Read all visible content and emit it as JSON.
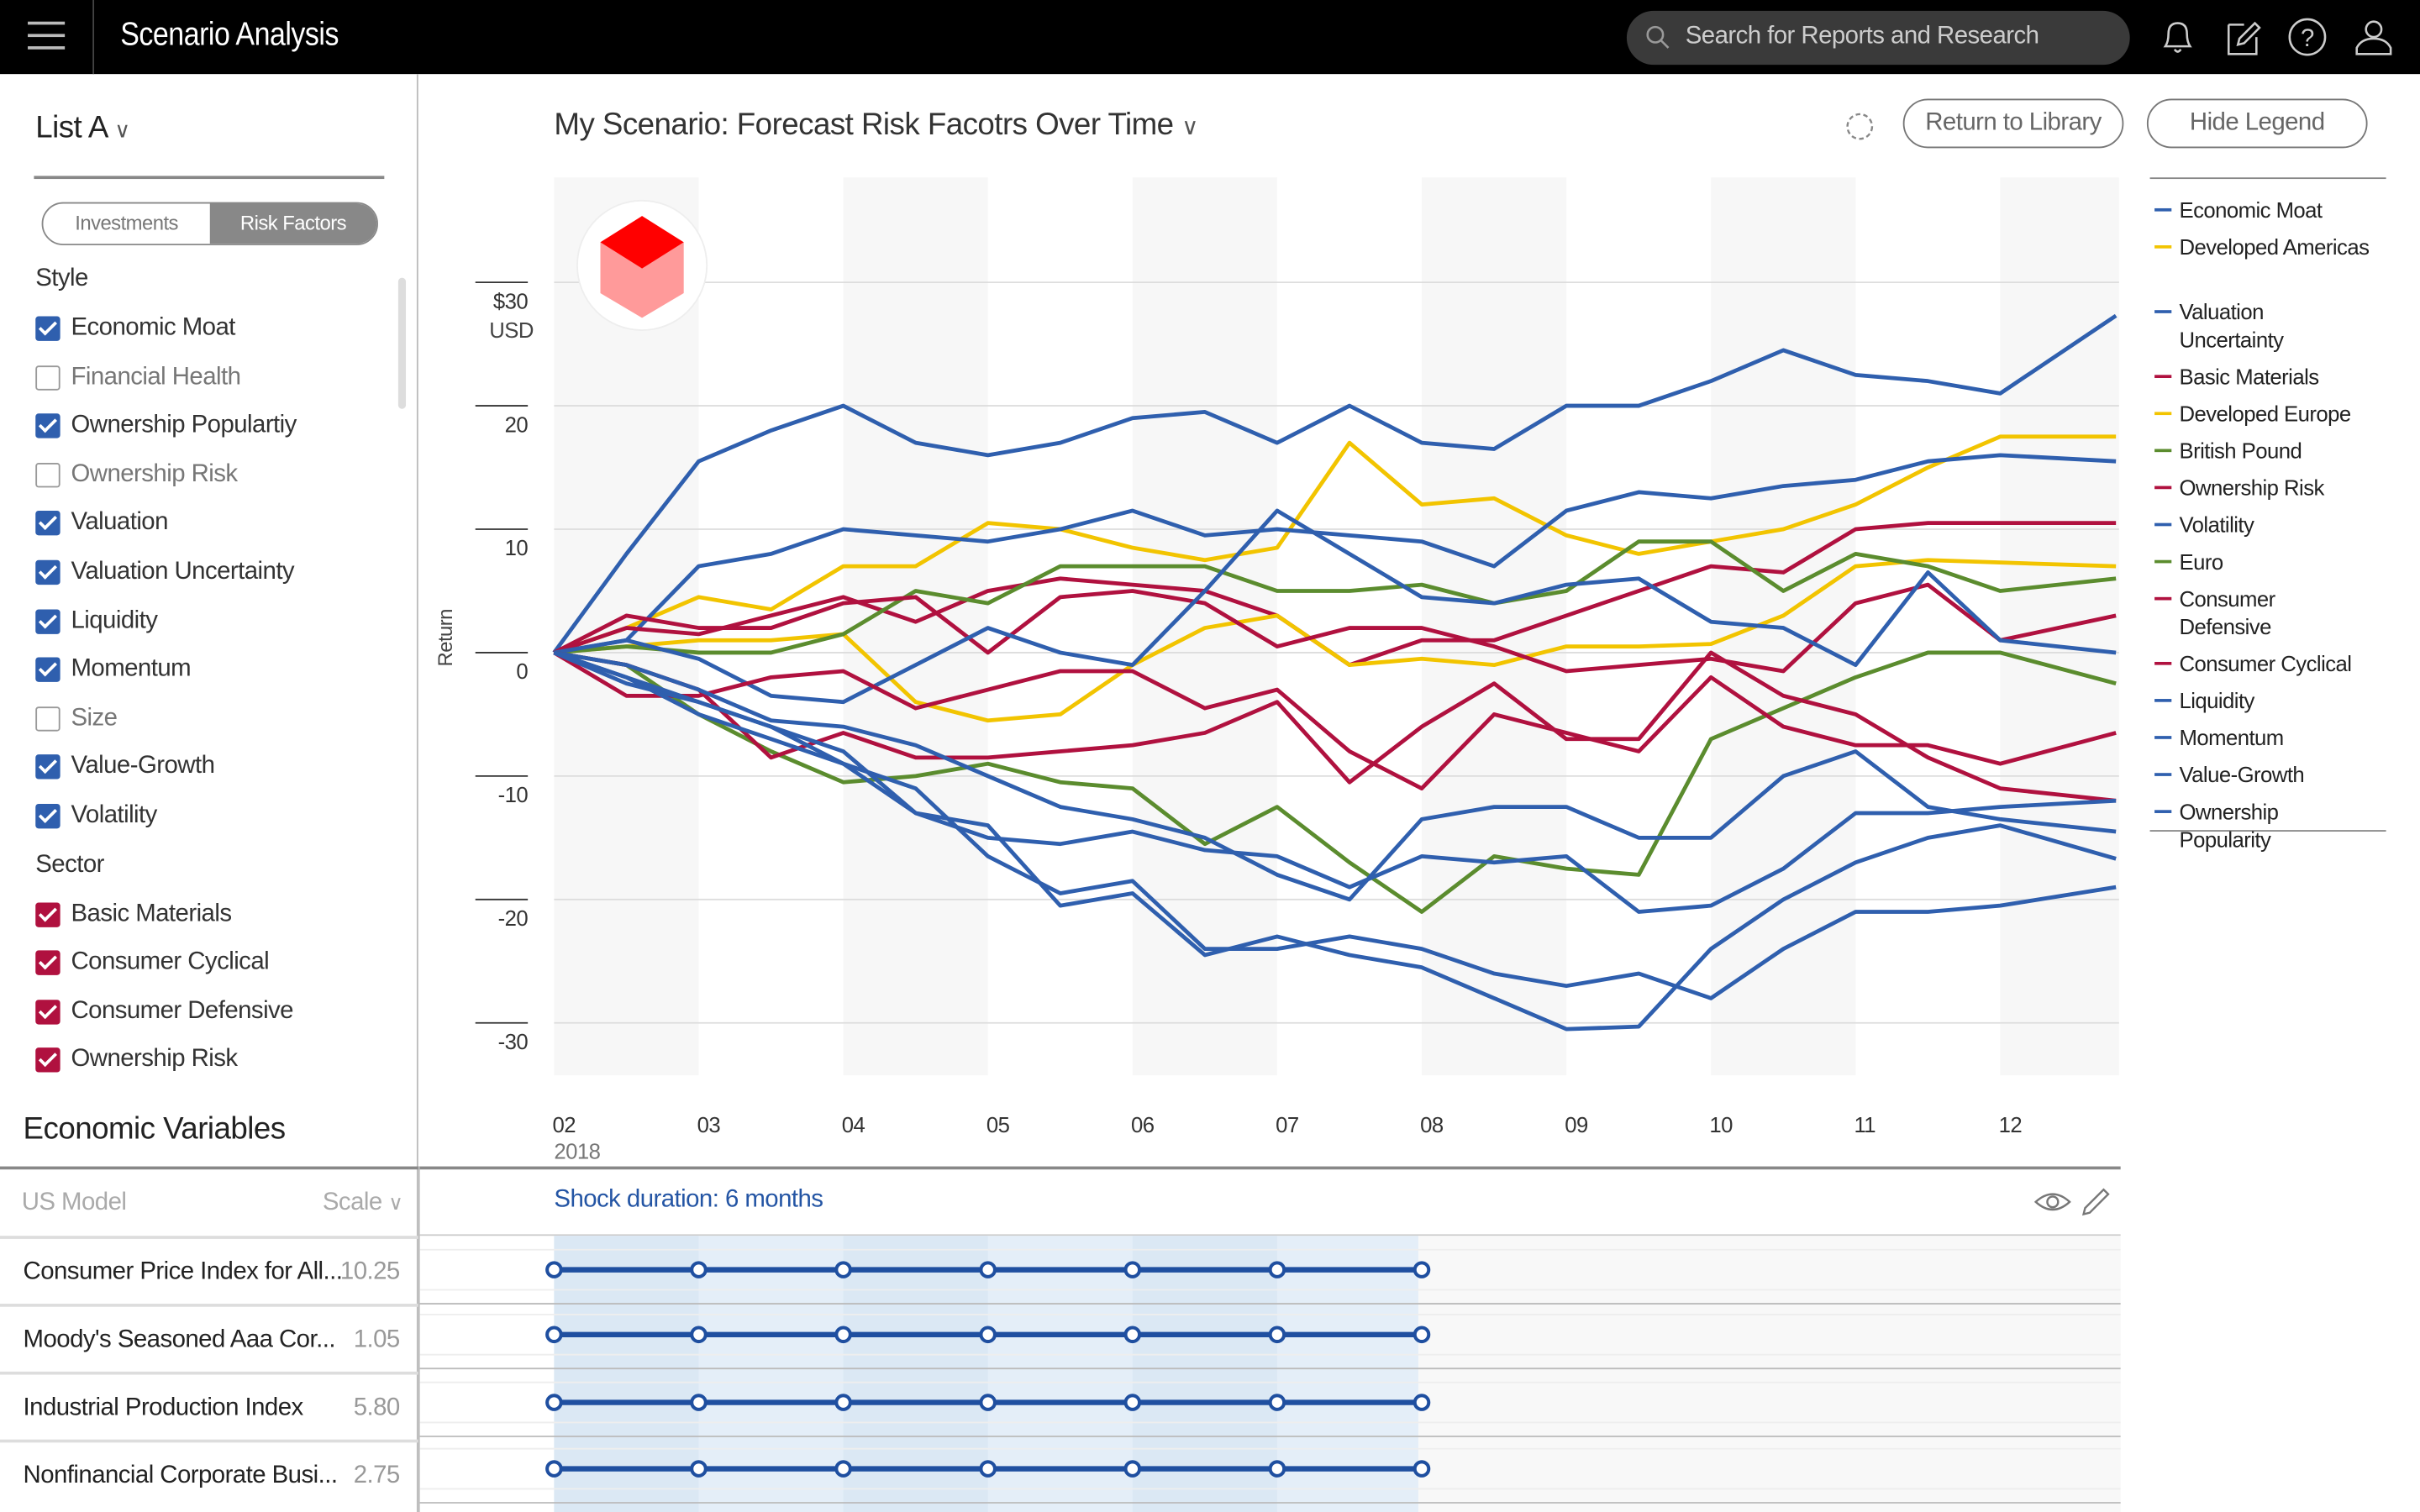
{
  "app": {
    "title": "Scenario Analysis",
    "search_placeholder": "Search for Reports and Research",
    "icons": [
      "menu-icon",
      "search-icon",
      "bell-icon",
      "edit-icon",
      "help-icon",
      "user-icon"
    ]
  },
  "sidebar": {
    "list_label": "List A",
    "toggle": {
      "options": [
        "Investments",
        "Risk Factors"
      ],
      "selected": "Risk Factors"
    },
    "sections": [
      {
        "title": "Style",
        "items": [
          {
            "label": "Economic Moat",
            "checked": true,
            "color": "#2f5fae"
          },
          {
            "label": "Financial Health",
            "checked": false
          },
          {
            "label": "Ownership Populartiy",
            "checked": true,
            "color": "#2f5fae"
          },
          {
            "label": "Ownership Risk",
            "checked": false
          },
          {
            "label": "Valuation",
            "checked": true,
            "color": "#2f5fae"
          },
          {
            "label": "Valuation Uncertainty",
            "checked": true,
            "color": "#2f5fae"
          },
          {
            "label": "Liquidity",
            "checked": true,
            "color": "#2f5fae"
          },
          {
            "label": "Momentum",
            "checked": true,
            "color": "#2f5fae"
          },
          {
            "label": "Size",
            "checked": false
          },
          {
            "label": "Value-Growth",
            "checked": true,
            "color": "#2f5fae"
          },
          {
            "label": "Volatility",
            "checked": true,
            "color": "#2f5fae"
          }
        ]
      },
      {
        "title": "Sector",
        "items": [
          {
            "label": "Basic Materials",
            "checked": true,
            "color": "#b0113f"
          },
          {
            "label": "Consumer Cyclical",
            "checked": true,
            "color": "#b0113f"
          },
          {
            "label": "Consumer Defensive",
            "checked": true,
            "color": "#b0113f"
          },
          {
            "label": "Ownership Risk",
            "checked": true,
            "color": "#b0113f"
          }
        ]
      }
    ]
  },
  "econ": {
    "title": "Economic Variables",
    "model": "US Model",
    "scale": "Scale",
    "rows": [
      {
        "name": "Consumer Price Index for All...",
        "value": "10.25"
      },
      {
        "name": "Moody's Seasoned Aaa Cor...",
        "value": "1.05"
      },
      {
        "name": "Industrial Production Index",
        "value": "5.80"
      },
      {
        "name": "Nonfinancial Corporate Busi...",
        "value": "2.75"
      }
    ],
    "shock_label": "Shock duration: 6 months",
    "shock_months": [
      2,
      3,
      4,
      5,
      6,
      7,
      8
    ]
  },
  "chart_header": {
    "title": "My Scenario: Forecast Risk Facotrs Over Time",
    "return_label": "Return to Library",
    "legend_label": "Hide Legend"
  },
  "chart_data": {
    "type": "line",
    "ylabel": "Return",
    "ylim": [
      -30,
      30
    ],
    "grid": true,
    "legend": "right",
    "y_ticks": [
      "$30",
      "20",
      "10",
      "0",
      "-10",
      "-20",
      "-30"
    ],
    "y_unit": "USD",
    "y_tick_values": [
      30,
      20,
      10,
      0,
      -10,
      -20,
      -30
    ],
    "x_ticks": [
      "02",
      "03",
      "04",
      "05",
      "06",
      "07",
      "08",
      "09",
      "10",
      "11",
      "12"
    ],
    "x_year": "2018",
    "x": [
      2,
      2.5,
      3,
      3.5,
      4,
      4.5,
      5,
      5.5,
      6,
      6.5,
      7,
      7.5,
      8,
      8.5,
      9,
      9.5,
      10,
      10.5,
      11,
      11.5,
      12,
      12.8
    ],
    "series": [
      {
        "name": "Economic Moat",
        "color": "#2f5fae",
        "values": [
          0,
          8,
          15.5,
          18,
          20,
          17,
          16,
          17,
          19,
          19.5,
          17,
          20,
          17,
          16.5,
          20,
          20,
          22,
          24.5,
          22.5,
          22,
          21,
          27.3
        ]
      },
      {
        "name": "Developed Americas",
        "color": "#f2c400",
        "values": [
          0,
          2,
          4.5,
          3.5,
          7,
          7,
          10.5,
          10,
          8.5,
          7.5,
          8.5,
          17,
          12,
          12.5,
          9.5,
          8,
          9,
          10,
          12,
          15,
          17.5,
          17.5
        ]
      },
      {
        "name": "Valuation Uncertainty",
        "color": "#2f5fae",
        "values": [
          0,
          1,
          7,
          8,
          10,
          9.5,
          9,
          10,
          11.5,
          9.5,
          10,
          9.5,
          9,
          7,
          11.5,
          13,
          12.5,
          13.5,
          14,
          15.5,
          16,
          15.5
        ]
      },
      {
        "name": "Basic Materials",
        "color": "#b0113f",
        "values": [
          0,
          2,
          1.5,
          3,
          4.5,
          2.5,
          5,
          6,
          5.5,
          5,
          3,
          -1,
          1,
          1,
          3,
          5,
          7,
          6.5,
          10,
          10.5,
          10.5,
          10.5
        ]
      },
      {
        "name": "Developed Europe",
        "color": "#f2c400",
        "values": [
          0,
          0.5,
          1,
          1,
          1.5,
          -4,
          -5.5,
          -5,
          -1,
          2,
          3,
          -1,
          -0.5,
          -1,
          0.5,
          0.5,
          0.7,
          3,
          7,
          7.5,
          7.3,
          7
        ]
      },
      {
        "name": "British Pound",
        "color": "#5b8c2e",
        "values": [
          0,
          0.5,
          0,
          0,
          1.5,
          5,
          4,
          7,
          7,
          7,
          5,
          5,
          5.5,
          4,
          5,
          9,
          9,
          5,
          8,
          7,
          5,
          6
        ]
      },
      {
        "name": "Ownership Risk",
        "color": "#b0113f",
        "values": [
          0,
          3,
          2,
          2,
          4,
          4.5,
          0,
          4.5,
          5,
          4,
          0.5,
          2,
          2,
          0.5,
          -1.5,
          -1,
          -0.5,
          -1.5,
          4,
          5.5,
          1,
          3
        ]
      },
      {
        "name": "Volatility",
        "color": "#2f5fae",
        "values": [
          0,
          1,
          -0.5,
          -3.5,
          -4,
          -1,
          2,
          0,
          -1,
          5,
          11.5,
          8,
          4.5,
          4,
          5.5,
          6,
          2.5,
          2,
          -1,
          6.5,
          1,
          0
        ]
      },
      {
        "name": "Euro",
        "color": "#5b8c2e",
        "values": [
          0,
          -1,
          -5,
          -8,
          -10.5,
          -10,
          -9,
          -10.5,
          -11,
          -15.5,
          -12.5,
          -17,
          -21,
          -16.5,
          -17.5,
          -18,
          -7,
          -4.5,
          -2,
          0,
          0,
          -2.5
        ]
      },
      {
        "name": "Consumer Defensive",
        "color": "#b0113f",
        "values": [
          0,
          -3.5,
          -3.5,
          -2,
          -1.5,
          -4.5,
          -3,
          -1.5,
          -1.5,
          -4.5,
          -3,
          -8,
          -11,
          -5,
          -6.5,
          -8,
          -2,
          -6,
          -7.5,
          -7.5,
          -9,
          -6.5
        ]
      },
      {
        "name": "Consumer Cyclical",
        "color": "#b0113f",
        "values": [
          0,
          -1,
          -3,
          -8.5,
          -6.5,
          -8.5,
          -8.5,
          -8,
          -7.5,
          -6.5,
          -4,
          -10.5,
          -6,
          -2.5,
          -7,
          -7,
          0,
          -3.5,
          -5,
          -8.5,
          -11,
          -12
        ]
      },
      {
        "name": "Liquidity",
        "color": "#2f5fae",
        "values": [
          0,
          -1,
          -3,
          -5.5,
          -6,
          -7.5,
          -10,
          -12.5,
          -13.5,
          -15,
          -18,
          -20,
          -13.5,
          -12.5,
          -12.5,
          -15,
          -15,
          -10,
          -8,
          -12.5,
          -13.5,
          -14.5
        ]
      },
      {
        "name": "Momentum",
        "color": "#2f5fae",
        "values": [
          0,
          -2.5,
          -4,
          -6,
          -9,
          -11,
          -16.5,
          -19.5,
          -18.5,
          -24,
          -24,
          -23,
          -24,
          -26,
          -27,
          -26,
          -28,
          -24,
          -21,
          -21,
          -20.5,
          -19
        ]
      },
      {
        "name": "Value-Growth",
        "color": "#2f5fae",
        "values": [
          0,
          -2,
          -4,
          -6,
          -8,
          -13,
          -15,
          -15.5,
          -14.5,
          -16,
          -16.5,
          -19,
          -16.5,
          -17,
          -16.5,
          -21,
          -20.5,
          -17.5,
          -13,
          -13,
          -12.5,
          -12
        ]
      },
      {
        "name": "Ownership Popularity",
        "color": "#2f5fae",
        "values": [
          0,
          -2,
          -5,
          -7,
          -9,
          -13,
          -14,
          -20.5,
          -19.5,
          -24.5,
          -23,
          -24.5,
          -25.5,
          -28,
          -30.5,
          -30.3,
          -24,
          -20,
          -17,
          -15,
          -14,
          -16.7
        ]
      }
    ]
  }
}
